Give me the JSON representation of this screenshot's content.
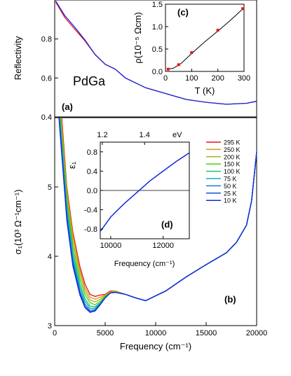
{
  "chart_data": [
    {
      "type": "line",
      "panel": "(a)",
      "annotation": "PdGa",
      "ylabel": "Reflectivity",
      "yticks": [
        "0.4",
        "0.6",
        "0.8"
      ],
      "ylim": [
        0.4,
        1.0
      ],
      "xlim": [
        0,
        20000
      ],
      "series": [
        {
          "name": "295 K",
          "color": "#e8141c",
          "values": [
            [
              100,
              0.99
            ],
            [
              1000,
              0.91
            ],
            [
              2000,
              0.85
            ],
            [
              3000,
              0.79
            ],
            [
              4000,
              0.72
            ],
            [
              5000,
              0.67
            ],
            [
              6000,
              0.645
            ],
            [
              7000,
              0.6
            ],
            [
              9000,
              0.55
            ],
            [
              11000,
              0.52
            ],
            [
              13000,
              0.49
            ],
            [
              15000,
              0.475
            ],
            [
              17000,
              0.465
            ],
            [
              19000,
              0.47
            ],
            [
              20000,
              0.48
            ]
          ]
        },
        {
          "name": "10 K",
          "color": "#1428e0",
          "values": [
            [
              100,
              0.995
            ],
            [
              1000,
              0.92
            ],
            [
              2000,
              0.86
            ],
            [
              3000,
              0.795
            ],
            [
              4000,
              0.72
            ],
            [
              5000,
              0.67
            ],
            [
              6000,
              0.645
            ],
            [
              7000,
              0.6
            ],
            [
              9000,
              0.55
            ],
            [
              11000,
              0.52
            ],
            [
              13000,
              0.49
            ],
            [
              15000,
              0.475
            ],
            [
              17000,
              0.465
            ],
            [
              19000,
              0.47
            ],
            [
              20000,
              0.48
            ]
          ]
        }
      ]
    },
    {
      "type": "line",
      "panel": "(b)",
      "xlabel": "Frequency (cm⁻¹)",
      "ylabel": "σ₁(10³ Ω⁻¹cm⁻¹)",
      "xticks": [
        "0",
        "5000",
        "10000",
        "15000",
        "20000"
      ],
      "yticks": [
        "3",
        "4",
        "5"
      ],
      "xlim": [
        0,
        20000
      ],
      "ylim": [
        3,
        6
      ],
      "legend_position": "top-right",
      "series": [
        {
          "name": "295 K",
          "color": "#e8141c",
          "values": [
            [
              700,
              6.0
            ],
            [
              1200,
              5.0
            ],
            [
              1800,
              4.35
            ],
            [
              2500,
              3.85
            ],
            [
              3000,
              3.6
            ],
            [
              3500,
              3.45
            ],
            [
              4000,
              3.42
            ],
            [
              4500,
              3.44
            ],
            [
              5000,
              3.45
            ],
            [
              5500,
              3.5
            ],
            [
              6000,
              3.5
            ],
            [
              7000,
              3.45
            ],
            [
              8000,
              3.4
            ],
            [
              9000,
              3.36
            ],
            [
              11000,
              3.5
            ],
            [
              13000,
              3.7
            ],
            [
              15000,
              3.88
            ],
            [
              17000,
              4.05
            ],
            [
              18000,
              4.2
            ],
            [
              19000,
              4.45
            ],
            [
              19500,
              4.8
            ],
            [
              20000,
              5.5
            ]
          ]
        },
        {
          "name": "250 K",
          "color": "#d79a14",
          "values": [
            [
              650,
              6.0
            ],
            [
              1200,
              4.95
            ],
            [
              1800,
              4.3
            ],
            [
              2500,
              3.8
            ],
            [
              3000,
              3.55
            ],
            [
              3500,
              3.41
            ],
            [
              4000,
              3.38
            ],
            [
              4500,
              3.41
            ],
            [
              5000,
              3.44
            ],
            [
              5500,
              3.49
            ],
            [
              6000,
              3.5
            ],
            [
              7000,
              3.45
            ],
            [
              8000,
              3.4
            ],
            [
              9000,
              3.36
            ],
            [
              11000,
              3.5
            ],
            [
              13000,
              3.7
            ],
            [
              15000,
              3.88
            ],
            [
              17000,
              4.05
            ],
            [
              18000,
              4.2
            ],
            [
              19000,
              4.45
            ],
            [
              19500,
              4.8
            ],
            [
              20000,
              5.5
            ]
          ]
        },
        {
          "name": "200 K",
          "color": "#a8b414",
          "values": [
            [
              600,
              6.0
            ],
            [
              1200,
              4.9
            ],
            [
              1800,
              4.22
            ],
            [
              2500,
              3.74
            ],
            [
              3000,
              3.5
            ],
            [
              3500,
              3.37
            ],
            [
              4000,
              3.34
            ],
            [
              4500,
              3.38
            ],
            [
              5000,
              3.43
            ],
            [
              5500,
              3.48
            ],
            [
              6000,
              3.49
            ],
            [
              7000,
              3.45
            ],
            [
              8000,
              3.4
            ],
            [
              9000,
              3.36
            ],
            [
              11000,
              3.5
            ],
            [
              13000,
              3.7
            ],
            [
              15000,
              3.88
            ],
            [
              17000,
              4.05
            ],
            [
              18000,
              4.2
            ],
            [
              19000,
              4.45
            ],
            [
              19500,
              4.8
            ],
            [
              20000,
              5.5
            ]
          ]
        },
        {
          "name": "150 K",
          "color": "#50c814",
          "values": [
            [
              560,
              6.0
            ],
            [
              1200,
              4.82
            ],
            [
              1800,
              4.14
            ],
            [
              2500,
              3.67
            ],
            [
              3000,
              3.45
            ],
            [
              3500,
              3.33
            ],
            [
              4000,
              3.3
            ],
            [
              4500,
              3.35
            ],
            [
              5000,
              3.42
            ],
            [
              5500,
              3.47
            ],
            [
              6000,
              3.49
            ],
            [
              7000,
              3.45
            ],
            [
              8000,
              3.4
            ],
            [
              9000,
              3.36
            ],
            [
              11000,
              3.5
            ],
            [
              13000,
              3.7
            ],
            [
              15000,
              3.88
            ],
            [
              17000,
              4.05
            ],
            [
              18000,
              4.2
            ],
            [
              19000,
              4.45
            ],
            [
              19500,
              4.8
            ],
            [
              20000,
              5.5
            ]
          ]
        },
        {
          "name": "100 K",
          "color": "#14c878",
          "values": [
            [
              520,
              6.0
            ],
            [
              1200,
              4.74
            ],
            [
              1800,
              4.06
            ],
            [
              2500,
              3.6
            ],
            [
              3000,
              3.39
            ],
            [
              3500,
              3.28
            ],
            [
              4000,
              3.27
            ],
            [
              4500,
              3.33
            ],
            [
              5000,
              3.41
            ],
            [
              5500,
              3.47
            ],
            [
              6000,
              3.48
            ],
            [
              7000,
              3.45
            ],
            [
              8000,
              3.4
            ],
            [
              9000,
              3.36
            ],
            [
              11000,
              3.5
            ],
            [
              13000,
              3.7
            ],
            [
              15000,
              3.88
            ],
            [
              17000,
              4.05
            ],
            [
              18000,
              4.2
            ],
            [
              19000,
              4.45
            ],
            [
              19500,
              4.8
            ],
            [
              20000,
              5.5
            ]
          ]
        },
        {
          "name": "75 K",
          "color": "#14b4b4",
          "values": [
            [
              490,
              6.0
            ],
            [
              1200,
              4.68
            ],
            [
              1800,
              4.0
            ],
            [
              2500,
              3.55
            ],
            [
              3000,
              3.35
            ],
            [
              3500,
              3.25
            ],
            [
              4000,
              3.25
            ],
            [
              4500,
              3.32
            ],
            [
              5000,
              3.41
            ],
            [
              5500,
              3.47
            ],
            [
              6000,
              3.48
            ],
            [
              7000,
              3.45
            ],
            [
              8000,
              3.4
            ],
            [
              9000,
              3.36
            ],
            [
              11000,
              3.5
            ],
            [
              13000,
              3.7
            ],
            [
              15000,
              3.88
            ],
            [
              17000,
              4.05
            ],
            [
              18000,
              4.2
            ],
            [
              19000,
              4.45
            ],
            [
              19500,
              4.8
            ],
            [
              20000,
              5.5
            ]
          ]
        },
        {
          "name": "50 K",
          "color": "#1482d2",
          "values": [
            [
              460,
              6.0
            ],
            [
              1200,
              4.62
            ],
            [
              1800,
              3.94
            ],
            [
              2500,
              3.5
            ],
            [
              3000,
              3.31
            ],
            [
              3500,
              3.22
            ],
            [
              4000,
              3.23
            ],
            [
              4500,
              3.31
            ],
            [
              5000,
              3.4
            ],
            [
              5500,
              3.47
            ],
            [
              6000,
              3.48
            ],
            [
              7000,
              3.45
            ],
            [
              8000,
              3.4
            ],
            [
              9000,
              3.36
            ],
            [
              11000,
              3.5
            ],
            [
              13000,
              3.7
            ],
            [
              15000,
              3.88
            ],
            [
              17000,
              4.05
            ],
            [
              18000,
              4.2
            ],
            [
              19000,
              4.45
            ],
            [
              19500,
              4.8
            ],
            [
              20000,
              5.5
            ]
          ]
        },
        {
          "name": "25 K",
          "color": "#1450dc",
          "values": [
            [
              440,
              6.0
            ],
            [
              1200,
              4.56
            ],
            [
              1800,
              3.9
            ],
            [
              2500,
              3.47
            ],
            [
              3000,
              3.28
            ],
            [
              3500,
              3.2
            ],
            [
              4000,
              3.22
            ],
            [
              4500,
              3.3
            ],
            [
              5000,
              3.4
            ],
            [
              5500,
              3.47
            ],
            [
              6000,
              3.48
            ],
            [
              7000,
              3.45
            ],
            [
              8000,
              3.4
            ],
            [
              9000,
              3.36
            ],
            [
              11000,
              3.5
            ],
            [
              13000,
              3.7
            ],
            [
              15000,
              3.88
            ],
            [
              17000,
              4.05
            ],
            [
              18000,
              4.2
            ],
            [
              19000,
              4.45
            ],
            [
              19500,
              4.8
            ],
            [
              20000,
              5.5
            ]
          ]
        },
        {
          "name": "10 K",
          "color": "#1428e0",
          "values": [
            [
              420,
              6.0
            ],
            [
              1200,
              4.52
            ],
            [
              1800,
              3.86
            ],
            [
              2500,
              3.44
            ],
            [
              3000,
              3.26
            ],
            [
              3500,
              3.19
            ],
            [
              4000,
              3.21
            ],
            [
              4500,
              3.3
            ],
            [
              5000,
              3.4
            ],
            [
              5500,
              3.47
            ],
            [
              6000,
              3.48
            ],
            [
              7000,
              3.45
            ],
            [
              8000,
              3.4
            ],
            [
              9000,
              3.36
            ],
            [
              11000,
              3.5
            ],
            [
              13000,
              3.7
            ],
            [
              15000,
              3.88
            ],
            [
              17000,
              4.05
            ],
            [
              18000,
              4.2
            ],
            [
              19000,
              4.45
            ],
            [
              19500,
              4.8
            ],
            [
              20000,
              5.5
            ]
          ]
        }
      ]
    },
    {
      "type": "scatter",
      "panel": "(c)",
      "xlabel": "T (K)",
      "ylabel": "ρ(10⁻⁵ Ωcm)",
      "xticks": [
        "0",
        "100",
        "200",
        "300"
      ],
      "yticks": [
        "0.0",
        "0.5",
        "1.0",
        "1.5"
      ],
      "xlim": [
        0,
        300
      ],
      "ylim": [
        0,
        1.5
      ],
      "points": [
        [
          10,
          0.05
        ],
        [
          50,
          0.15
        ],
        [
          100,
          0.42
        ],
        [
          200,
          0.92
        ],
        [
          295,
          1.4
        ]
      ],
      "fit": [
        [
          5,
          0.05
        ],
        [
          30,
          0.07
        ],
        [
          60,
          0.18
        ],
        [
          100,
          0.4
        ],
        [
          150,
          0.66
        ],
        [
          200,
          0.9
        ],
        [
          250,
          1.15
        ],
        [
          300,
          1.42
        ]
      ]
    },
    {
      "type": "line",
      "panel": "(d)",
      "xlabel": "Frequency (cm⁻¹)",
      "ylabel": "ε₁",
      "top_axis_unit": "eV",
      "top_ticks": [
        "1.2",
        "1.4"
      ],
      "xticks": [
        "10000",
        "12000"
      ],
      "yticks": [
        "-0.8",
        "-0.4",
        "0.0",
        "0.4",
        "0.8"
      ],
      "xlim": [
        9600,
        13000
      ],
      "ylim": [
        -1.0,
        1.0
      ],
      "series": [
        {
          "name": "10 K",
          "color": "#1428e0",
          "values": [
            [
              9600,
              -0.85
            ],
            [
              10000,
              -0.55
            ],
            [
              10500,
              -0.28
            ],
            [
              11000,
              -0.04
            ],
            [
              11500,
              0.2
            ],
            [
              12000,
              0.4
            ],
            [
              12500,
              0.6
            ],
            [
              13000,
              0.78
            ]
          ]
        }
      ]
    }
  ]
}
